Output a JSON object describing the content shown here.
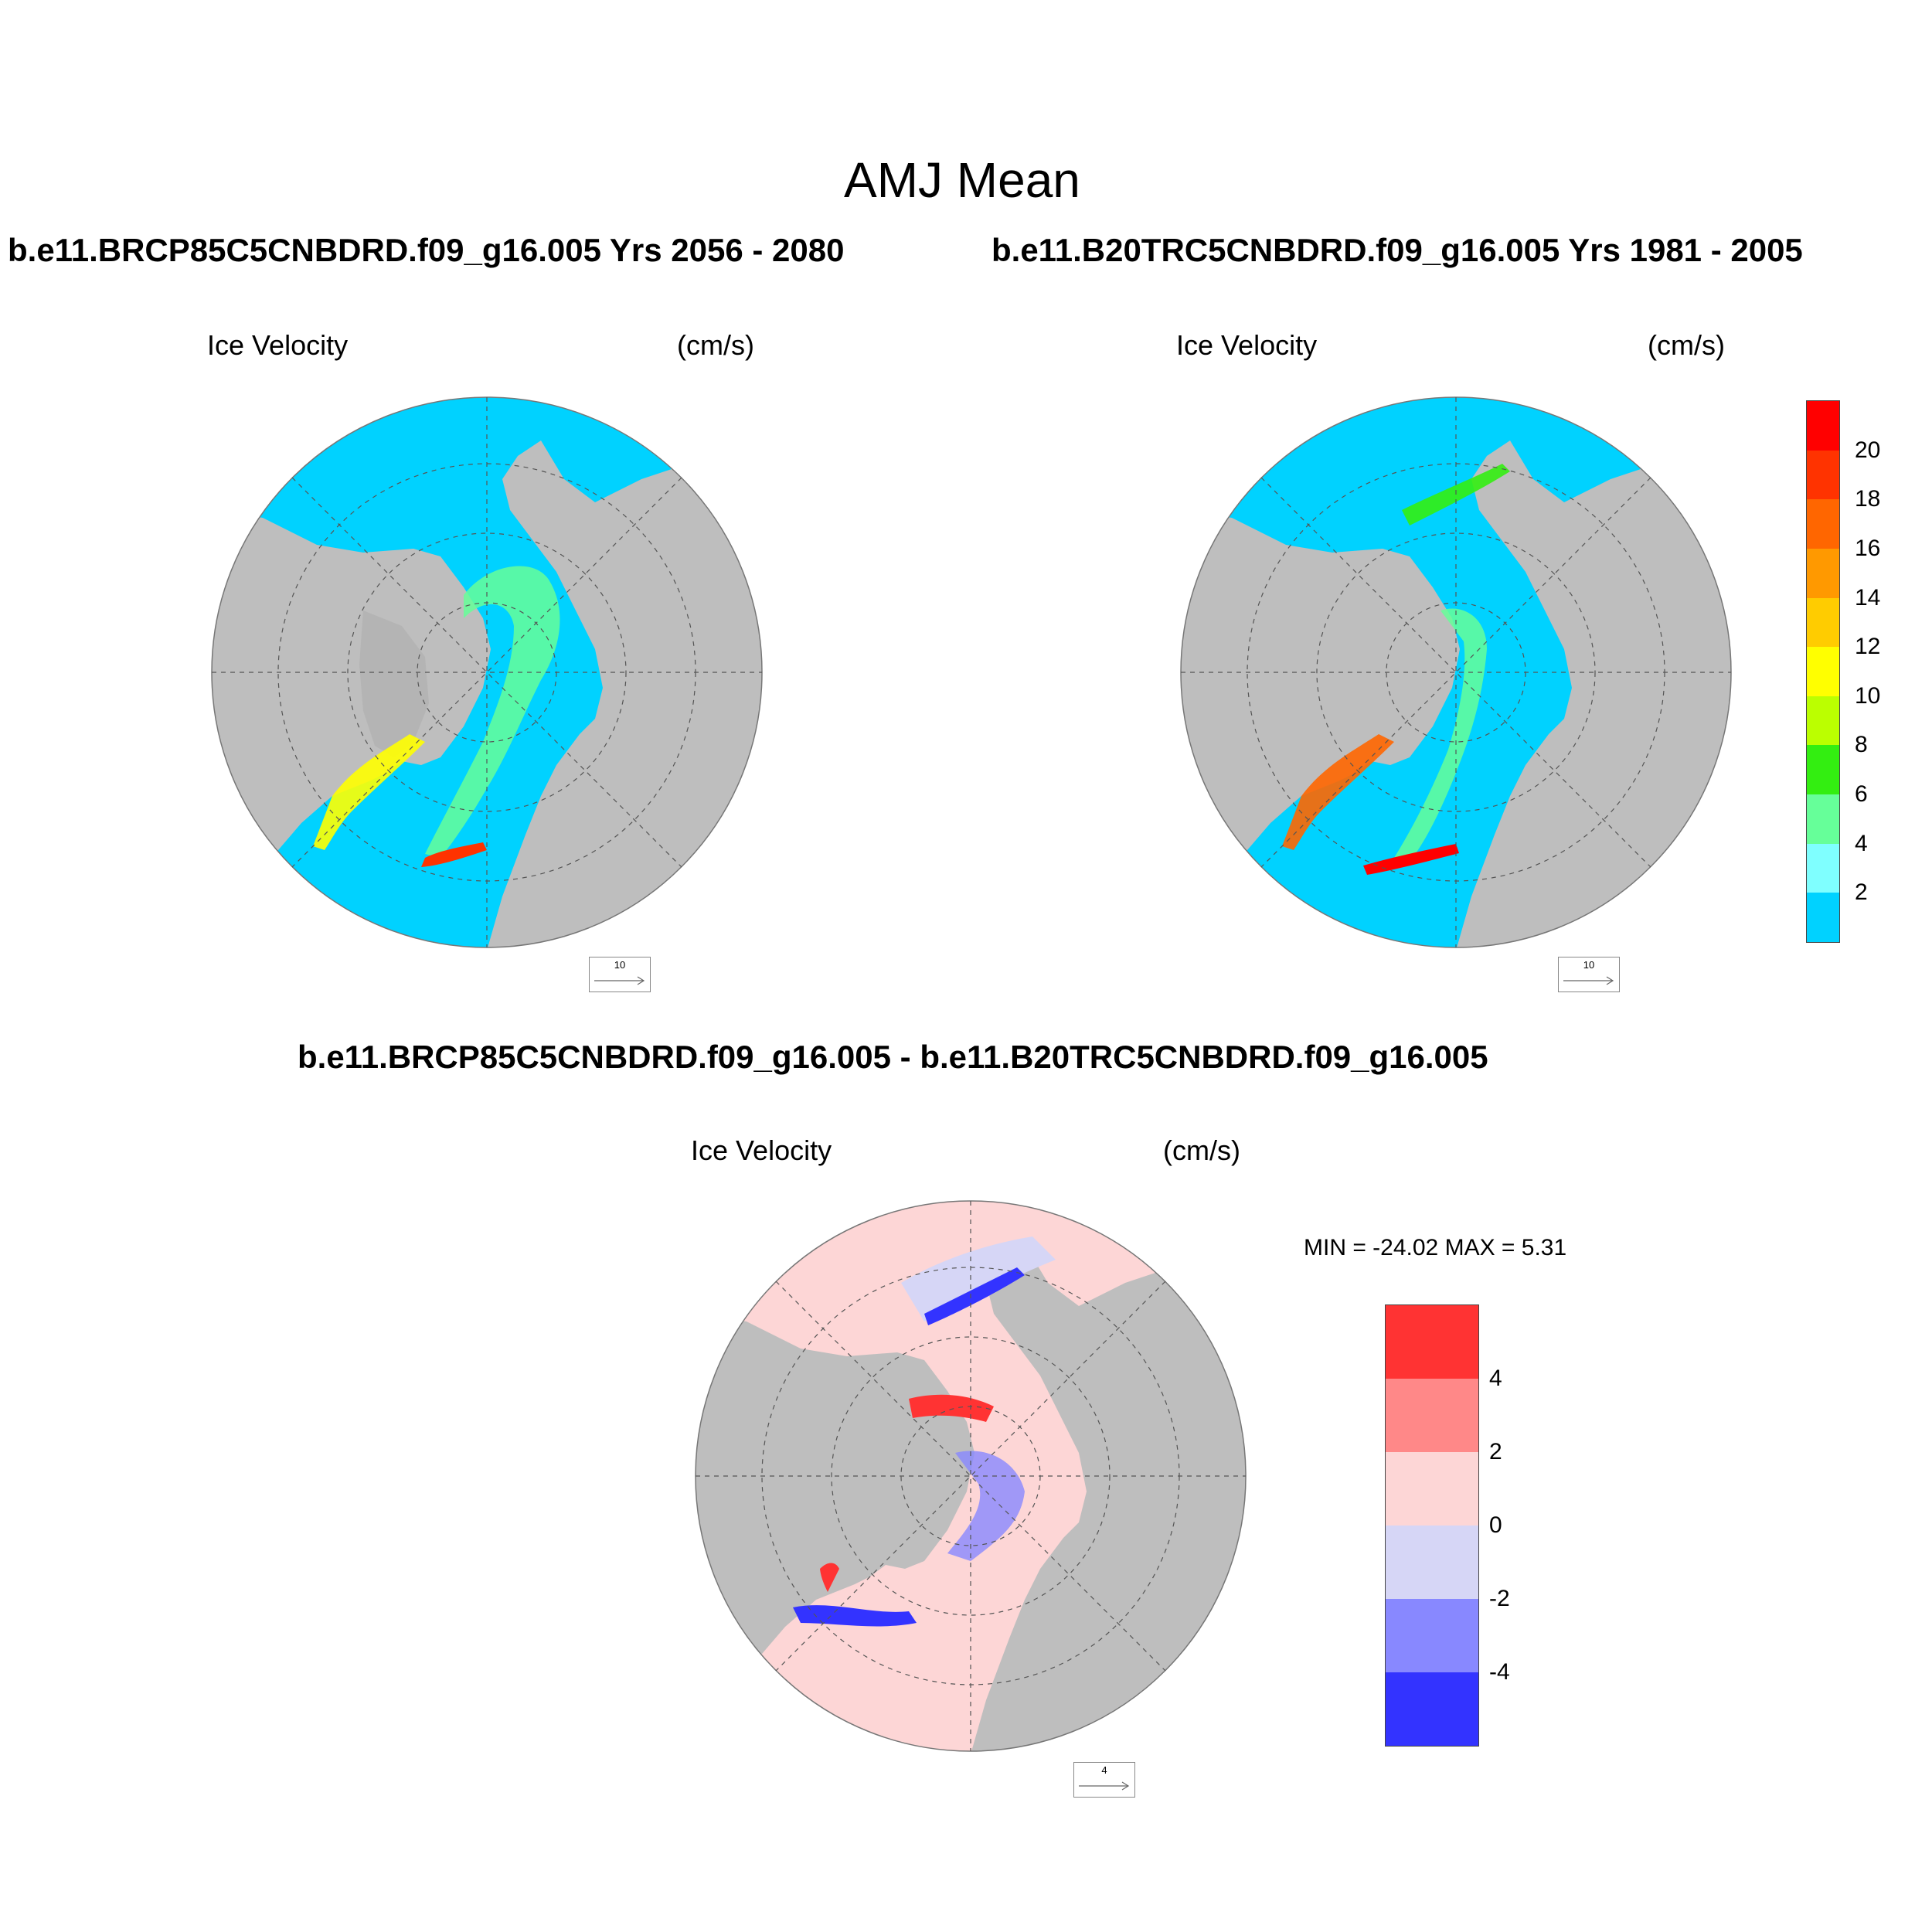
{
  "title": "AMJ Mean",
  "panels": [
    {
      "heading": "b.e11.BRCP85C5CNBDRD.f09_g16.005  Yrs 2056 - 2080",
      "variable": "Ice Velocity",
      "units": "(cm/s)",
      "ref_vector": "10"
    },
    {
      "heading": "b.e11.B20TRC5CNBDRD.f09_g16.005  Yrs 1981 - 2005",
      "variable": "Ice Velocity",
      "units": "(cm/s)",
      "ref_vector": "10"
    },
    {
      "heading": "b.e11.BRCP85C5CNBDRD.f09_g16.005 - b.e11.B20TRC5CNBDRD.f09_g16.005",
      "variable": "Ice Velocity",
      "units": "(cm/s)",
      "ref_vector": "4",
      "stats": "MIN = -24.02 MAX =   5.31"
    }
  ],
  "colorbar_main": {
    "colors": [
      "#00d2ff",
      "#7fffff",
      "#66ff99",
      "#33ee11",
      "#bbff00",
      "#ffff00",
      "#ffcc00",
      "#ff9900",
      "#ff6600",
      "#ff3300",
      "#ff0000"
    ],
    "ticks": [
      "2",
      "4",
      "6",
      "8",
      "10",
      "12",
      "14",
      "16",
      "18",
      "20"
    ]
  },
  "colorbar_diff": {
    "colors": [
      "#ff3333",
      "#ff8888",
      "#fdd6d6",
      "#d6d6f6",
      "#8888ff",
      "#3333ff"
    ],
    "ticks": [
      "4",
      "2",
      "0",
      "-2",
      "-4"
    ]
  },
  "colors": {
    "land": "#bebebe",
    "ocean_main": "#00d2ff",
    "ocean_diff": "#fdd6d6"
  }
}
